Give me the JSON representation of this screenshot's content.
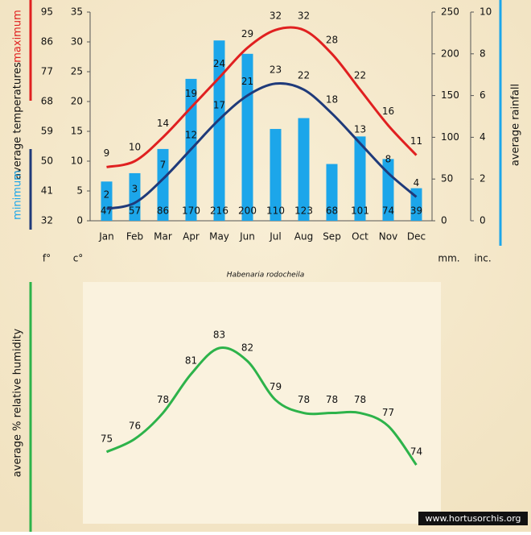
{
  "chart_data": [
    {
      "type": "combo",
      "subtitle": "Habenaria rodocheila",
      "categories": [
        "Jan",
        "Feb",
        "Mar",
        "Apr",
        "May",
        "Jun",
        "Jul",
        "Aug",
        "Sep",
        "Oct",
        "Nov",
        "Dec"
      ],
      "ylabel": "average temperatures",
      "yunit": "c°",
      "ylim": [
        0,
        35
      ],
      "yticks": [
        0,
        5,
        10,
        15,
        20,
        25,
        30,
        35
      ],
      "y2unit": "mm.",
      "y2lim": [
        0,
        250
      ],
      "y2ticks": [
        0,
        50,
        100,
        150,
        200,
        250
      ],
      "y3unit": "f°",
      "y3lim": [
        32,
        95
      ],
      "y3ticks": [
        32,
        41,
        50,
        59,
        68,
        77,
        86,
        95
      ],
      "y4unit": "inc.",
      "y4lim": [
        0,
        10
      ],
      "y4ticks": [
        0,
        2,
        4,
        6,
        8,
        10
      ],
      "series": [
        {
          "name": "average rainfall",
          "type": "bar",
          "axis": "y2",
          "color": "#1ca6ea",
          "values": [
            47,
            57,
            86,
            170,
            216,
            200,
            110,
            123,
            68,
            101,
            74,
            39
          ]
        },
        {
          "name": "maximum",
          "type": "line",
          "color": "#e02020",
          "values": [
            9,
            10,
            14,
            19,
            24,
            29,
            32,
            32,
            28,
            22,
            16,
            11
          ]
        },
        {
          "name": "minimum",
          "type": "line",
          "color": "#1f3a7a",
          "values": [
            2,
            3,
            7,
            12,
            17,
            21,
            23,
            22,
            18,
            13,
            8,
            4
          ]
        }
      ]
    },
    {
      "type": "line",
      "ylabel": "average % relative humidity",
      "color": "#2db34a",
      "values": [
        75,
        76,
        78,
        81,
        83,
        82,
        79,
        78,
        78,
        78,
        77,
        74
      ]
    }
  ],
  "watermark": "www.hortusorchis.org"
}
